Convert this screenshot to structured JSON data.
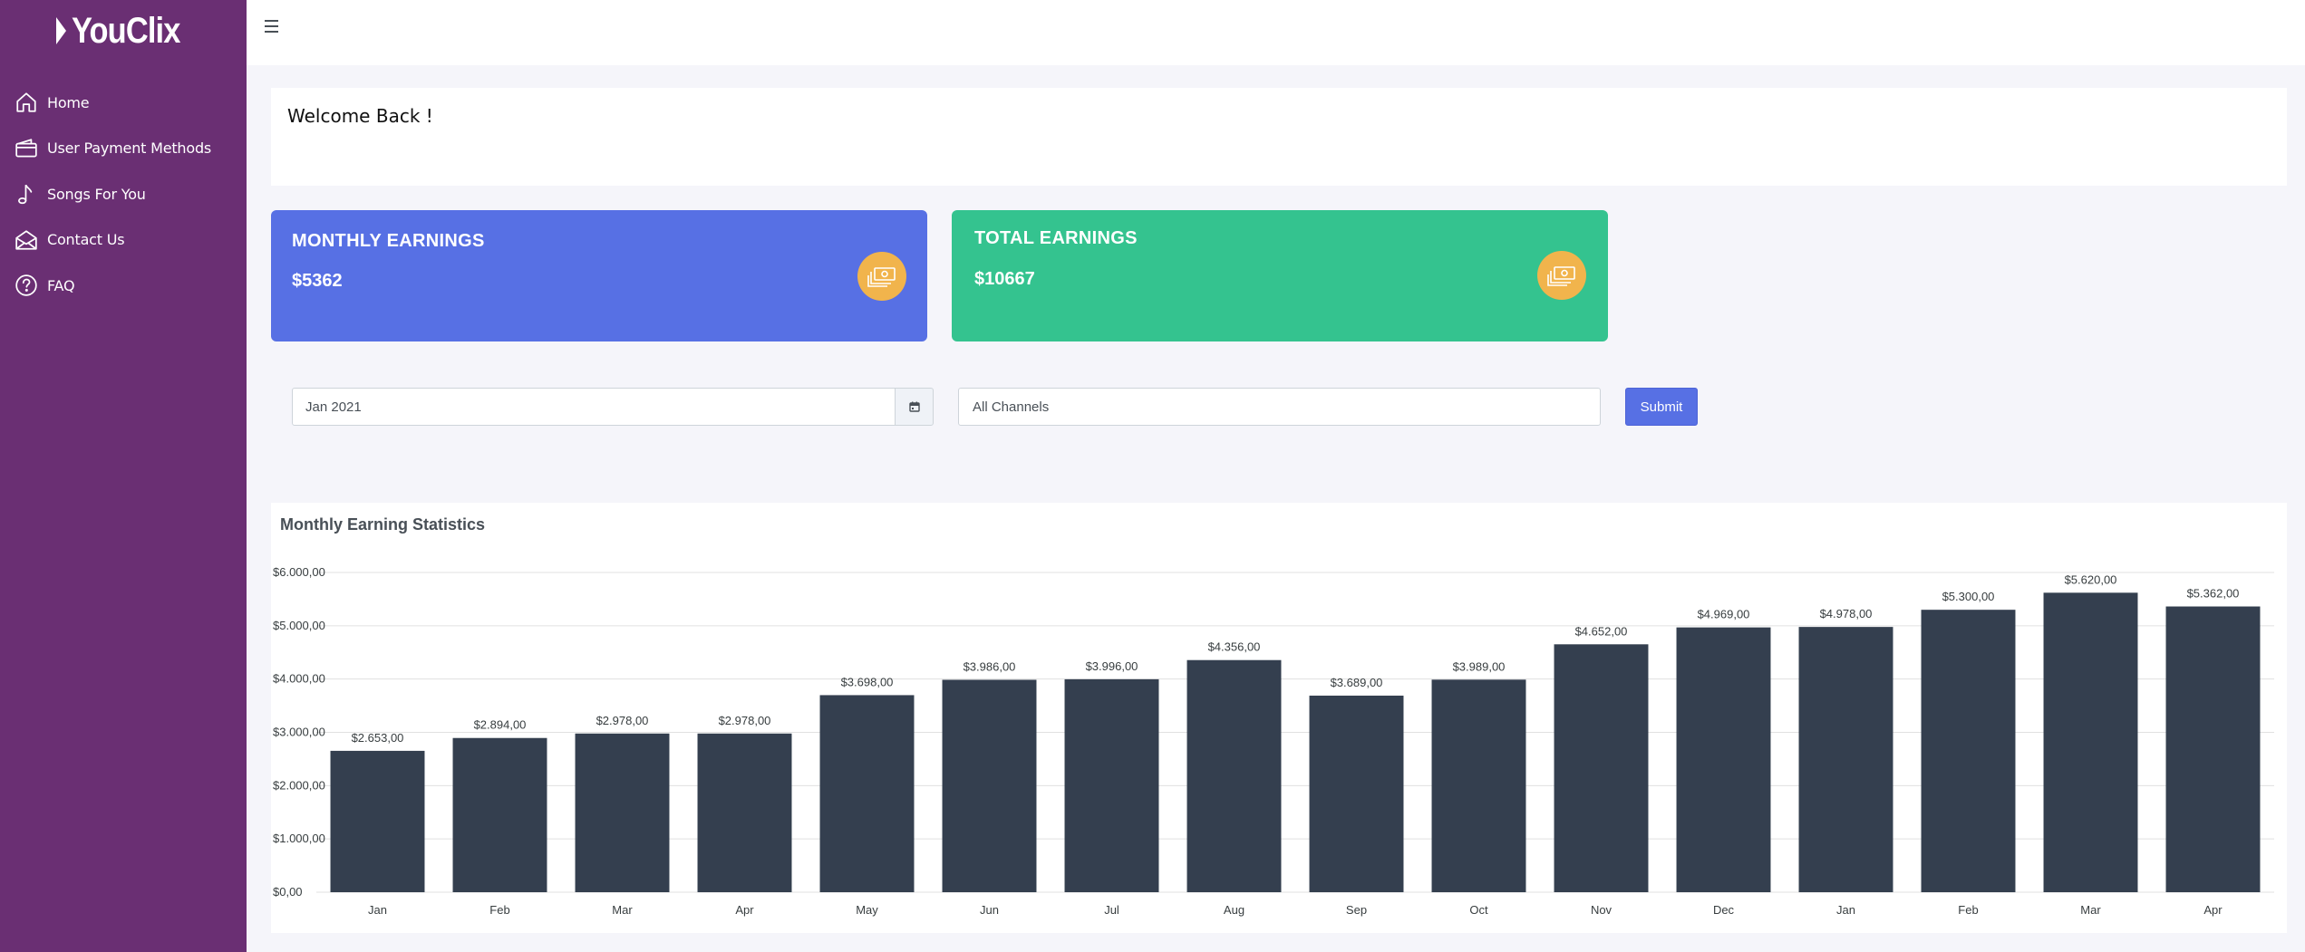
{
  "brand": {
    "name": "YouClix"
  },
  "sidebar": {
    "items": [
      {
        "label": "Home",
        "icon": "home-icon"
      },
      {
        "label": "User Payment Methods",
        "icon": "wallet-icon"
      },
      {
        "label": "Songs For You",
        "icon": "music-note-icon"
      },
      {
        "label": "Contact Us",
        "icon": "mail-open-icon"
      },
      {
        "label": "FAQ",
        "icon": "question-circle-icon"
      }
    ]
  },
  "welcome": {
    "text": "Welcome Back !"
  },
  "cards": {
    "monthly": {
      "title": "MONTHLY EARNINGS",
      "value": "$5362",
      "icon": "money-icon"
    },
    "total": {
      "title": "TOTAL EARNINGS",
      "value": "$10667",
      "icon": "money-icon"
    }
  },
  "filters": {
    "month_value": "Jan 2021",
    "channel_value": "All Channels",
    "submit_label": "Submit"
  },
  "colors": {
    "sidebar": "#6a2f73",
    "monthly_card": "#5770e4",
    "total_card": "#34c38f",
    "icon_badge": "#f1b44c",
    "bar": "#343f4f"
  },
  "chart_data": {
    "type": "bar",
    "title": "Monthly Earning Statistics",
    "categories": [
      "Jan",
      "Feb",
      "Mar",
      "Apr",
      "May",
      "Jun",
      "Jul",
      "Aug",
      "Sep",
      "Oct",
      "Nov",
      "Dec",
      "Jan",
      "Feb",
      "Mar",
      "Apr"
    ],
    "values": [
      2653,
      2894,
      2978,
      2978,
      3698,
      3986,
      3996,
      4356,
      3689,
      3989,
      4652,
      4969,
      4978,
      5300,
      5620,
      5362
    ],
    "data_labels": [
      "$2.653,00",
      "$2.894,00",
      "$2.978,00",
      "$2.978,00",
      "$3.698,00",
      "$3.986,00",
      "$3.996,00",
      "$4.356,00",
      "$3.689,00",
      "$3.989,00",
      "$4.652,00",
      "$4.969,00",
      "$4.978,00",
      "$5.300,00",
      "$5.620,00",
      "$5.362,00"
    ],
    "y_ticks": [
      0,
      1000,
      2000,
      3000,
      4000,
      5000,
      6000
    ],
    "y_tick_labels": [
      "$0,00",
      "$1.000,00",
      "$2.000,00",
      "$3.000,00",
      "$4.000,00",
      "$5.000,00",
      "$6.000,00"
    ],
    "ylim": [
      0,
      6000
    ],
    "grid": true,
    "legend": false
  }
}
